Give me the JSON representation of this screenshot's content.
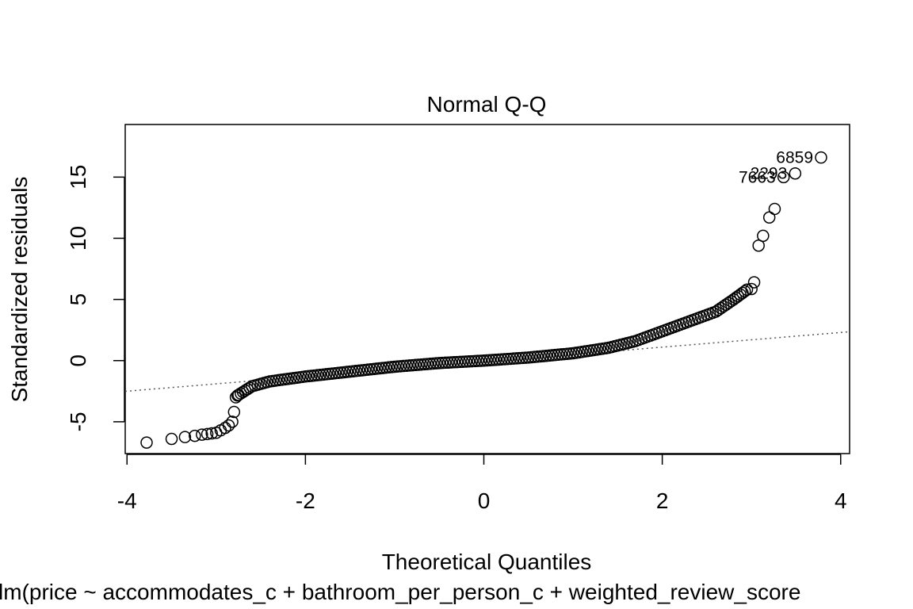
{
  "chart_data": {
    "type": "scatter",
    "title": "Normal Q-Q",
    "xlabel": "Theoretical Quantiles",
    "ylabel": "Standardized residuals",
    "caption": "lm(price ~ accommodates_c + bathroom_per_person_c + weighted_review_score",
    "xlim": [
      -4.02,
      4.1
    ],
    "ylim": [
      -7.6,
      19.3
    ],
    "xticks": [
      "-4",
      "-2",
      "0",
      "2",
      "4"
    ],
    "xtick_values": [
      -4,
      -2,
      0,
      2,
      4
    ],
    "yticks": [
      "-5",
      "0",
      "5",
      "10",
      "15"
    ],
    "ytick_values": [
      -5,
      0,
      5,
      10,
      15
    ],
    "grid": false,
    "reference_line": {
      "style": "dotted",
      "color": "#555555",
      "intercept": -0.1,
      "slope": 0.6
    },
    "curve": [
      [
        -2.75,
        -2.8
      ],
      [
        -2.6,
        -2.1
      ],
      [
        -2.4,
        -1.7
      ],
      [
        -2.0,
        -1.3
      ],
      [
        -1.5,
        -0.9
      ],
      [
        -1.0,
        -0.5
      ],
      [
        -0.5,
        -0.2
      ],
      [
        0.0,
        0.0
      ],
      [
        0.5,
        0.25
      ],
      [
        1.0,
        0.6
      ],
      [
        1.4,
        1.05
      ],
      [
        1.7,
        1.6
      ],
      [
        2.0,
        2.4
      ],
      [
        2.3,
        3.2
      ],
      [
        2.6,
        4.0
      ],
      [
        2.8,
        5.0
      ],
      [
        2.95,
        5.8
      ]
    ],
    "tail_low": [
      [
        -3.78,
        -6.7
      ],
      [
        -3.5,
        -6.4
      ],
      [
        -3.35,
        -6.25
      ],
      [
        -3.24,
        -6.15
      ],
      [
        -3.16,
        -6.05
      ],
      [
        -3.1,
        -6.0
      ],
      [
        -3.05,
        -5.95
      ],
      [
        -3.0,
        -5.9
      ],
      [
        -2.95,
        -5.7
      ],
      [
        -2.9,
        -5.5
      ],
      [
        -2.86,
        -5.3
      ],
      [
        -2.82,
        -5.0
      ],
      [
        -2.8,
        -4.2
      ],
      [
        -2.78,
        -3.0
      ],
      [
        -2.76,
        -2.85
      ]
    ],
    "tail_high": [
      [
        3.0,
        5.85
      ],
      [
        3.03,
        6.4
      ],
      [
        3.08,
        9.4
      ],
      [
        3.13,
        10.2
      ],
      [
        3.2,
        11.7
      ],
      [
        3.26,
        12.4
      ],
      [
        3.36,
        15.0
      ],
      [
        3.49,
        15.3
      ],
      [
        3.78,
        16.6
      ]
    ],
    "labeled_points": [
      {
        "label": "6859",
        "x": 3.78,
        "y": 16.6
      },
      {
        "label": "2293",
        "x": 3.49,
        "y": 15.3
      },
      {
        "label": "7663",
        "x": 3.36,
        "y": 15.0
      }
    ],
    "colors": {
      "points": "#000000",
      "reference": "#555555",
      "frame": "#000000"
    }
  }
}
